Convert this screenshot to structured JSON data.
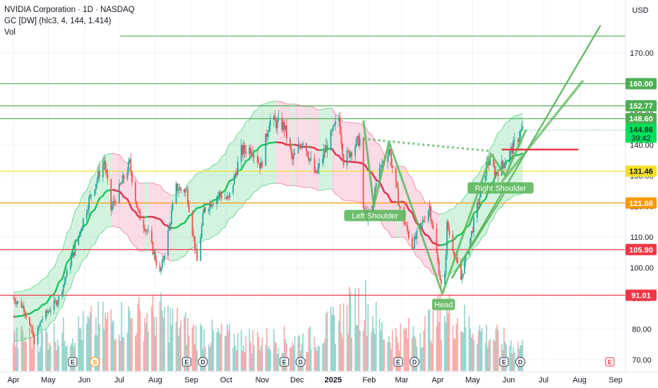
{
  "header": {
    "title": "NVIDIA Corporation · 1D · NASDAQ",
    "indicator": "GC [DW] (hlc3, 4, 144, 1.414)",
    "volume": "Vol"
  },
  "currency": "USD",
  "chart_data": {
    "type": "candlestick",
    "x_ticks": [
      {
        "label": "Apr",
        "date": "2024-04-01"
      },
      {
        "label": "May",
        "date": "2024-05-01"
      },
      {
        "label": "Jun",
        "date": "2024-06-01"
      },
      {
        "label": "Jul",
        "date": "2024-07-01"
      },
      {
        "label": "Aug",
        "date": "2024-08-01"
      },
      {
        "label": "Sep",
        "date": "2024-09-01"
      },
      {
        "label": "Oct",
        "date": "2024-10-01"
      },
      {
        "label": "Nov",
        "date": "2024-11-01"
      },
      {
        "label": "Dec",
        "date": "2024-12-01"
      },
      {
        "label": "2025",
        "date": "2025-01-01"
      },
      {
        "label": "Feb",
        "date": "2025-02-01"
      },
      {
        "label": "Mar",
        "date": "2025-03-01"
      },
      {
        "label": "Apr",
        "date": "2025-04-01"
      },
      {
        "label": "May",
        "date": "2025-05-01"
      },
      {
        "label": "Jun",
        "date": "2025-06-01"
      },
      {
        "label": "Jul",
        "date": "2025-07-01"
      },
      {
        "label": "Aug",
        "date": "2025-08-01"
      },
      {
        "label": "Sep",
        "date": "2025-09-01"
      }
    ],
    "y_ticks": [
      70,
      80,
      90,
      100,
      110,
      120,
      130,
      140,
      150,
      160,
      170
    ],
    "y_range": [
      68,
      180
    ],
    "price_path": [
      [
        "2024-04-01",
        90
      ],
      [
        "2024-04-10",
        87
      ],
      [
        "2024-04-19",
        76
      ],
      [
        "2024-04-25",
        83
      ],
      [
        "2024-05-10",
        90
      ],
      [
        "2024-05-22",
        104
      ],
      [
        "2024-06-05",
        122
      ],
      [
        "2024-06-18",
        135
      ],
      [
        "2024-06-24",
        119
      ],
      [
        "2024-07-10",
        134
      ],
      [
        "2024-07-17",
        118
      ],
      [
        "2024-07-25",
        112
      ],
      [
        "2024-08-05",
        98
      ],
      [
        "2024-08-08",
        103
      ],
      [
        "2024-08-19",
        126
      ],
      [
        "2024-08-28",
        125
      ],
      [
        "2024-09-06",
        102
      ],
      [
        "2024-09-12",
        119
      ],
      [
        "2024-09-25",
        124
      ],
      [
        "2024-10-03",
        122
      ],
      [
        "2024-10-14",
        138
      ],
      [
        "2024-10-23",
        139
      ],
      [
        "2024-10-31",
        133
      ],
      [
        "2024-11-07",
        148
      ],
      [
        "2024-11-20",
        146
      ],
      [
        "2024-11-27",
        135
      ],
      [
        "2024-12-06",
        142
      ],
      [
        "2024-12-17",
        130
      ],
      [
        "2024-12-26",
        139
      ],
      [
        "2025-01-06",
        149
      ],
      [
        "2025-01-10",
        135
      ],
      [
        "2025-01-24",
        142
      ],
      [
        "2025-01-27",
        118
      ],
      [
        "2025-02-03",
        116
      ],
      [
        "2025-02-07",
        129
      ],
      [
        "2025-02-18",
        139
      ],
      [
        "2025-02-27",
        120
      ],
      [
        "2025-03-10",
        107
      ],
      [
        "2025-03-25",
        120
      ],
      [
        "2025-04-04",
        94
      ],
      [
        "2025-04-07",
        97
      ],
      [
        "2025-04-09",
        114
      ],
      [
        "2025-04-21",
        96
      ],
      [
        "2025-05-01",
        113
      ],
      [
        "2025-05-14",
        135
      ],
      [
        "2025-05-21",
        131
      ],
      [
        "2025-05-30",
        135
      ],
      [
        "2025-06-11",
        144
      ],
      [
        "2025-06-13",
        144.86
      ]
    ],
    "volume_profile": [
      [
        "2024-04-01",
        0.45
      ],
      [
        "2024-05-20",
        0.55
      ],
      [
        "2024-06-15",
        0.7
      ],
      [
        "2024-08-05",
        0.8
      ],
      [
        "2024-09-03",
        0.55
      ],
      [
        "2024-10-15",
        0.45
      ],
      [
        "2024-12-15",
        0.45
      ],
      [
        "2025-01-27",
        1.0
      ],
      [
        "2025-02-15",
        0.5
      ],
      [
        "2025-03-15",
        0.55
      ],
      [
        "2025-04-07",
        0.85
      ],
      [
        "2025-05-15",
        0.5
      ],
      [
        "2025-06-13",
        0.35
      ]
    ],
    "levels": [
      {
        "price": 175.5,
        "color": "#4caf50",
        "label": ""
      },
      {
        "price": 160.0,
        "color": "#4caf50",
        "label": "160.00"
      },
      {
        "price": 152.77,
        "color": "#4caf50",
        "label": "152.77"
      },
      {
        "price": 148.6,
        "color": "#4caf50",
        "label": "148.60"
      },
      {
        "price": 131.46,
        "color": "#f5e02a",
        "label": "131.46"
      },
      {
        "price": 121.08,
        "color": "#ff9800",
        "label": "121.08"
      },
      {
        "price": 105.9,
        "color": "#f23645",
        "label": "105.90"
      },
      {
        "price": 91.01,
        "color": "#f23645",
        "label": "91.01"
      }
    ],
    "current_price": {
      "value": "144.86",
      "countdown": "39:42",
      "price": 144.86
    },
    "patterns": [
      {
        "label": "Left Shoulder",
        "date": "2025-02-06",
        "price": 117
      },
      {
        "label": "Head",
        "date": "2025-04-06",
        "price": 88
      },
      {
        "label": "Right Shoulder",
        "date": "2025-05-25",
        "price": 126
      }
    ],
    "earnings_events": [
      {
        "label": "E",
        "date": "2024-05-22"
      },
      {
        "label": "S",
        "date": "2024-06-10"
      },
      {
        "label": "E",
        "date": "2024-08-28"
      },
      {
        "label": "D",
        "date": "2024-09-11"
      },
      {
        "label": "E",
        "date": "2024-11-20"
      },
      {
        "label": "D",
        "date": "2024-12-04"
      },
      {
        "label": "E",
        "date": "2025-02-26"
      },
      {
        "label": "D",
        "date": "2025-03-12"
      },
      {
        "label": "E",
        "date": "2025-05-28"
      },
      {
        "label": "D",
        "date": "2025-06-11"
      },
      {
        "label": "E",
        "date": "2025-08-27"
      }
    ],
    "colors": {
      "up": "#26a69a",
      "down": "#ef5350",
      "band_green": "#22c55e",
      "band_red": "#e91e63",
      "pattern": "#5cb85c",
      "target_red": "#f23645"
    }
  }
}
